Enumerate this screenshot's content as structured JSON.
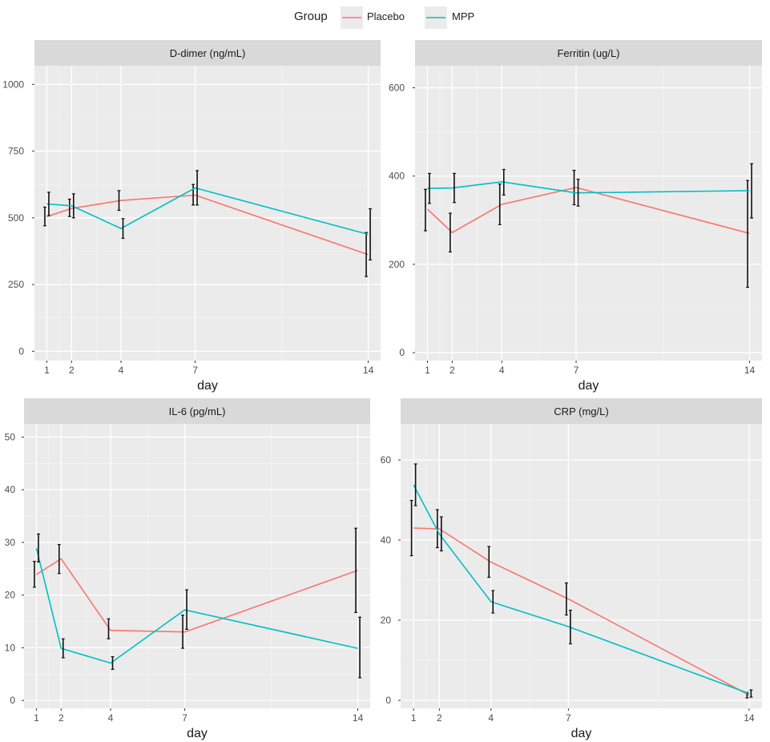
{
  "legend": {
    "title": "Group",
    "items": [
      {
        "label": "Placebo",
        "color": "#F8766D"
      },
      {
        "label": "MPP",
        "color": "#00BFC4"
      }
    ]
  },
  "chart_data": [
    {
      "type": "line",
      "title": "D-dimer (ng/mL)",
      "xlabel": "day",
      "ylabel": "",
      "x": [
        1,
        2,
        4,
        7,
        14
      ],
      "xticks": [
        1,
        2,
        4,
        7,
        14
      ],
      "yticks": [
        0,
        250,
        500,
        750,
        1000
      ],
      "ylim": [
        -35,
        1070
      ],
      "xlim": [
        0.5,
        14.5
      ],
      "series": [
        {
          "name": "Placebo",
          "color": "#F8766D",
          "values": [
            505,
            535,
            565,
            585,
            362
          ],
          "lower": [
            470,
            505,
            528,
            548,
            280
          ],
          "upper": [
            540,
            570,
            602,
            625,
            445
          ]
        },
        {
          "name": "MPP",
          "color": "#00BFC4",
          "values": [
            552,
            545,
            460,
            612,
            438
          ],
          "lower": [
            508,
            500,
            423,
            548,
            342
          ],
          "upper": [
            596,
            590,
            497,
            677,
            534
          ]
        }
      ]
    },
    {
      "type": "line",
      "title": "Ferritin (ug/L)",
      "xlabel": "day",
      "ylabel": "",
      "x": [
        1,
        2,
        4,
        7,
        14
      ],
      "xticks": [
        1,
        2,
        4,
        7,
        14
      ],
      "yticks": [
        0,
        200,
        400,
        600
      ],
      "ylim": [
        -18,
        650
      ],
      "xlim": [
        0.5,
        14.5
      ],
      "series": [
        {
          "name": "Placebo",
          "color": "#F8766D",
          "values": [
            325,
            272,
            336,
            374,
            270
          ],
          "lower": [
            276,
            228,
            290,
            335,
            148
          ],
          "upper": [
            370,
            316,
            382,
            413,
            390
          ]
        },
        {
          "name": "MPP",
          "color": "#00BFC4",
          "values": [
            372,
            373,
            387,
            362,
            367
          ],
          "lower": [
            338,
            340,
            357,
            332,
            305
          ],
          "upper": [
            406,
            406,
            415,
            393,
            428
          ]
        }
      ]
    },
    {
      "type": "line",
      "title": "IL-6 (pg/mL)",
      "xlabel": "day",
      "ylabel": "",
      "x": [
        1,
        2,
        4,
        7,
        14
      ],
      "xticks": [
        1,
        2,
        4,
        7,
        14
      ],
      "yticks": [
        0,
        10,
        20,
        30,
        40,
        50
      ],
      "ylim": [
        -1.5,
        52.5
      ],
      "xlim": [
        0.5,
        14.5
      ],
      "series": [
        {
          "name": "Placebo",
          "color": "#F8766D",
          "values": [
            23.9,
            26.9,
            13.3,
            13.0,
            24.7
          ],
          "lower": [
            21.5,
            24.1,
            11.7,
            9.9,
            16.7
          ],
          "upper": [
            26.4,
            29.6,
            15.5,
            16.2,
            32.7
          ]
        },
        {
          "name": "MPP",
          "color": "#00BFC4",
          "values": [
            28.9,
            9.9,
            7.1,
            17.2,
            9.9
          ],
          "lower": [
            26.3,
            8.1,
            5.9,
            13.5,
            4.3
          ],
          "upper": [
            31.6,
            11.7,
            8.3,
            21.0,
            15.8
          ]
        }
      ]
    },
    {
      "type": "line",
      "title": "CRP (mg/L)",
      "xlabel": "day",
      "ylabel": "",
      "x": [
        1,
        2,
        4,
        7,
        14
      ],
      "xticks": [
        1,
        2,
        4,
        7,
        14
      ],
      "yticks": [
        0,
        20,
        40,
        60
      ],
      "ylim": [
        -2,
        69
      ],
      "xlim": [
        0.5,
        14.5
      ],
      "series": [
        {
          "name": "Placebo",
          "color": "#F8766D",
          "values": [
            43.0,
            42.8,
            34.5,
            25.3,
            1.3
          ],
          "lower": [
            36.1,
            38.1,
            30.7,
            21.3,
            0.6
          ],
          "upper": [
            49.9,
            47.6,
            38.4,
            29.3,
            2.0
          ]
        },
        {
          "name": "MPP",
          "color": "#00BFC4",
          "values": [
            53.8,
            41.5,
            24.6,
            18.4,
            1.7
          ],
          "lower": [
            48.6,
            37.3,
            21.8,
            14.1,
            0.8
          ],
          "upper": [
            59.0,
            45.8,
            27.4,
            22.5,
            2.6
          ]
        }
      ]
    }
  ]
}
